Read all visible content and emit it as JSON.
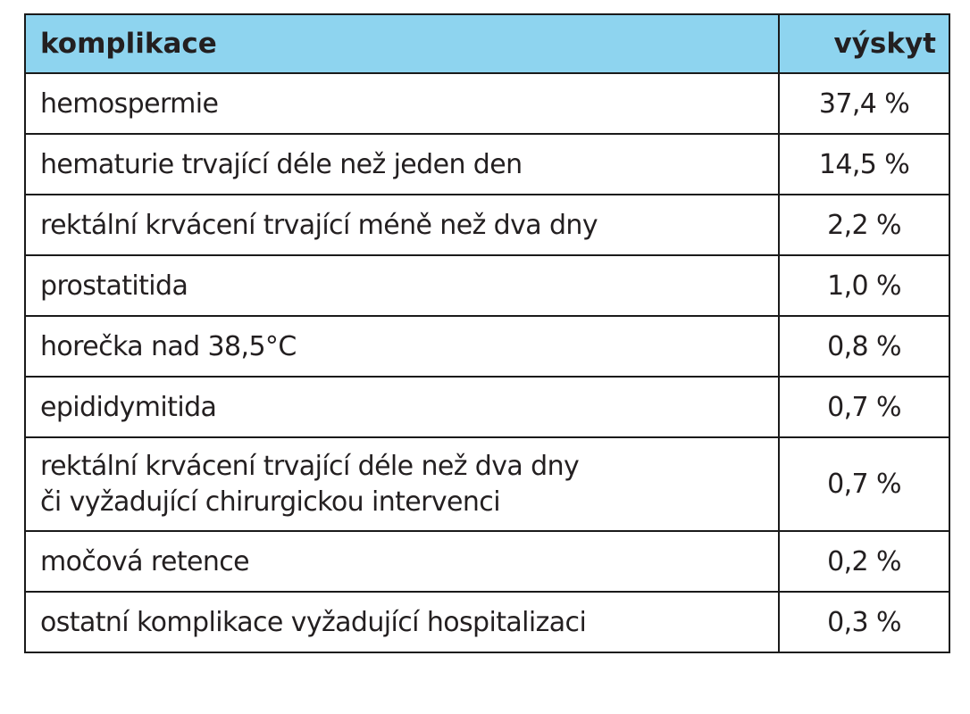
{
  "table": {
    "headers": {
      "complication": "komplikace",
      "occurrence": "výskyt"
    },
    "rows": [
      {
        "lines": [
          "hemospermie"
        ],
        "value": "37,4 %"
      },
      {
        "lines": [
          "hematurie trvající déle než jeden den"
        ],
        "value": "14,5 %"
      },
      {
        "lines": [
          "rektální krvácení trvající méně než dva dny"
        ],
        "value": "2,2 %"
      },
      {
        "lines": [
          "prostatitida"
        ],
        "value": "1,0 %"
      },
      {
        "lines": [
          "horečka nad 38,5°C"
        ],
        "value": "0,8 %"
      },
      {
        "lines": [
          "epididymitida"
        ],
        "value": "0,7 %"
      },
      {
        "lines": [
          "rektální krvácení trvající déle než dva dny",
          "či vyžadující chirurgickou intervenci"
        ],
        "value": "0,7 %"
      },
      {
        "lines": [
          "močová retence"
        ],
        "value": "0,2 %"
      },
      {
        "lines": [
          "ostatní komplikace vyžadující hospitalizaci"
        ],
        "value": "0,3 %"
      }
    ],
    "colors": {
      "header_bg": "#8ed4ef",
      "border": "#1a1a1a",
      "text": "#231f20"
    }
  }
}
